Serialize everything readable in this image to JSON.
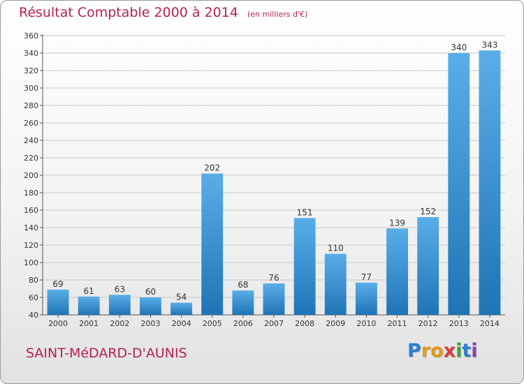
{
  "title": "Résultat Comptable 2000 à 2014",
  "subtitle": "(en milliers d'€)",
  "commune": "SAINT-MéDARD-D'AUNIS",
  "logo": {
    "letters": [
      "P",
      "r",
      "o",
      "x",
      "i",
      "t",
      "i"
    ],
    "colors": [
      "#2a7fd4",
      "#e59a1a",
      "#e59a1a",
      "#d93a3a",
      "#3aa63a",
      "#2a7fd4",
      "#8c3fb0"
    ]
  },
  "colors": {
    "title": "#b5224f",
    "bar_light": "#5aaee8",
    "bar_dark": "#1f74b6"
  },
  "chart_data": {
    "type": "bar",
    "categories": [
      "2000",
      "2001",
      "2002",
      "2003",
      "2004",
      "2005",
      "2006",
      "2007",
      "2008",
      "2009",
      "2010",
      "2011",
      "2012",
      "2013",
      "2014"
    ],
    "values": [
      69,
      61,
      63,
      60,
      54,
      202,
      68,
      76,
      151,
      110,
      77,
      139,
      152,
      340,
      343
    ],
    "yticks": [
      40,
      60,
      80,
      100,
      120,
      140,
      160,
      180,
      200,
      220,
      240,
      260,
      280,
      300,
      320,
      340,
      360
    ],
    "ylim": [
      40,
      360
    ],
    "grid": true,
    "data_labels": true
  }
}
